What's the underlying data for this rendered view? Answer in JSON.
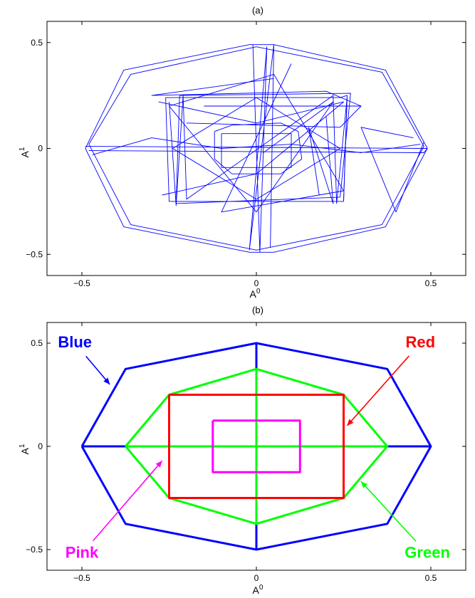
{
  "chart_data": [
    {
      "type": "line",
      "title": "(a)",
      "xlabel": "A",
      "xlabel_sup": "0",
      "ylabel": "A",
      "ylabel_sup": "1",
      "xlim": [
        -0.6,
        0.6
      ],
      "ylim": [
        -0.6,
        0.6
      ],
      "xticks": [
        -0.5,
        0,
        0.5
      ],
      "xtick_labels": [
        "−0.5",
        "0",
        "0.5"
      ],
      "yticks": [
        -0.5,
        0,
        0.5
      ],
      "ytick_labels": [
        "−0.5",
        "0",
        "0.5"
      ],
      "grid": false,
      "legend": "none",
      "series": [
        {
          "color": "#0000ff",
          "points": [
            [
              -0.49,
              0
            ],
            [
              -0.38,
              0.37
            ],
            [
              -0.02,
              0.49
            ],
            [
              0.05,
              0.49
            ],
            [
              0.37,
              0.37
            ],
            [
              0.49,
              0
            ],
            [
              0.37,
              -0.37
            ],
            [
              0.05,
              -0.49
            ],
            [
              -0.02,
              -0.49
            ],
            [
              -0.38,
              -0.37
            ],
            [
              -0.49,
              0
            ]
          ]
        },
        {
          "color": "#0000ff",
          "points": [
            [
              -0.48,
              0.02
            ],
            [
              -0.36,
              0.35
            ],
            [
              0.0,
              0.48
            ],
            [
              0.36,
              0.36
            ],
            [
              0.48,
              0.01
            ],
            [
              0.36,
              -0.36
            ],
            [
              0.0,
              -0.48
            ],
            [
              -0.36,
              -0.36
            ],
            [
              -0.48,
              0.02
            ]
          ]
        },
        {
          "color": "#0000ff",
          "points": [
            [
              -0.26,
              0.24
            ],
            [
              0.24,
              0.24
            ],
            [
              0.26,
              0.25
            ],
            [
              0.25,
              -0.25
            ],
            [
              -0.25,
              -0.25
            ],
            [
              -0.26,
              0.24
            ]
          ]
        },
        {
          "color": "#0000ff",
          "points": [
            [
              -0.22,
              0.25
            ],
            [
              0.27,
              0.26
            ],
            [
              0.24,
              -0.23
            ],
            [
              -0.23,
              -0.26
            ],
            [
              -0.22,
              0.25
            ]
          ]
        },
        {
          "color": "#0000ff",
          "points": [
            [
              -0.12,
              0.08
            ],
            [
              -0.07,
              0.11
            ],
            [
              0.07,
              0.12
            ],
            [
              0.12,
              0.08
            ],
            [
              0.13,
              -0.05
            ],
            [
              0.07,
              -0.12
            ],
            [
              -0.07,
              -0.12
            ],
            [
              -0.12,
              -0.05
            ],
            [
              -0.12,
              0.08
            ]
          ]
        },
        {
          "color": "#0000ff",
          "points": [
            [
              -0.1,
              0.07
            ],
            [
              0.1,
              0.07
            ],
            [
              0.1,
              -0.09
            ],
            [
              -0.1,
              -0.09
            ],
            [
              -0.1,
              0.07
            ]
          ]
        },
        {
          "color": "#0000ff",
          "points": [
            [
              -0.49,
              0.01
            ],
            [
              0.49,
              0.0
            ],
            [
              0.48,
              -0.02
            ],
            [
              -0.48,
              -0.01
            ]
          ]
        },
        {
          "color": "#0000ff",
          "points": [
            [
              -0.01,
              0.49
            ],
            [
              0.01,
              -0.49
            ],
            [
              0.03,
              0.48
            ],
            [
              -0.02,
              -0.48
            ],
            [
              0.05,
              0.49
            ],
            [
              0.04,
              -0.47
            ]
          ]
        },
        {
          "color": "#0000ff",
          "points": [
            [
              0.0,
              0.24
            ],
            [
              0.24,
              0.0
            ],
            [
              0.0,
              -0.24
            ],
            [
              -0.24,
              0.0
            ],
            [
              0.0,
              0.24
            ]
          ]
        },
        {
          "color": "#0000ff",
          "points": [
            [
              -0.25,
              0.22
            ],
            [
              -0.23,
              -0.27
            ],
            [
              -0.21,
              0.25
            ],
            [
              -0.2,
              -0.24
            ],
            [
              0.22,
              0.25
            ],
            [
              0.23,
              -0.26
            ],
            [
              0.26,
              0.24
            ],
            [
              0.25,
              -0.25
            ]
          ]
        },
        {
          "color": "#0000ff",
          "points": [
            [
              -0.15,
              0.2
            ],
            [
              0.3,
              0.2
            ],
            [
              0.24,
              0.1
            ],
            [
              -0.2,
              0.12
            ]
          ]
        },
        {
          "color": "#0000ff",
          "points": [
            [
              0.05,
              0.33
            ],
            [
              -0.3,
              0.25
            ],
            [
              0.2,
              0.27
            ],
            [
              0.3,
              0.2
            ]
          ]
        },
        {
          "color": "#0000ff",
          "points": [
            [
              0.02,
              -0.02
            ],
            [
              0.22,
              0.22
            ],
            [
              0.0,
              -0.3
            ],
            [
              -0.25,
              0.2
            ],
            [
              0.05,
              0.35
            ],
            [
              0.25,
              -0.2
            ],
            [
              -0.1,
              -0.3
            ],
            [
              0.1,
              0.4
            ]
          ]
        },
        {
          "color": "#0000ff",
          "points": [
            [
              0.48,
              0.03
            ],
            [
              0.4,
              -0.3
            ],
            [
              0.3,
              0.1
            ],
            [
              0.45,
              0.05
            ]
          ]
        },
        {
          "color": "#0000ff",
          "points": [
            [
              -0.47,
              -0.03
            ],
            [
              -0.3,
              0.05
            ],
            [
              -0.1,
              0.0
            ],
            [
              0.1,
              0.02
            ],
            [
              0.3,
              -0.02
            ],
            [
              0.47,
              0.02
            ]
          ]
        },
        {
          "color": "#0000ff",
          "points": [
            [
              0.18,
              -0.22
            ],
            [
              0.15,
              0.1
            ],
            [
              0.22,
              -0.26
            ],
            [
              0.2,
              0.15
            ]
          ]
        },
        {
          "color": "#0000ff",
          "points": [
            [
              -0.28,
              0.22
            ],
            [
              0.0,
              0.12
            ],
            [
              0.25,
              0.22
            ],
            [
              0.0,
              -0.12
            ],
            [
              -0.27,
              -0.22
            ]
          ]
        }
      ]
    },
    {
      "type": "line",
      "title": "(b)",
      "xlabel": "A",
      "xlabel_sup": "0",
      "ylabel": "A",
      "ylabel_sup": "1",
      "xlim": [
        -0.6,
        0.6
      ],
      "ylim": [
        -0.6,
        0.6
      ],
      "xticks": [
        -0.5,
        0,
        0.5
      ],
      "xtick_labels": [
        "−0.5",
        "0",
        "0.5"
      ],
      "yticks": [
        -0.5,
        0,
        0.5
      ],
      "ytick_labels": [
        "−0.5",
        "0",
        "0.5"
      ],
      "grid": false,
      "legend": "none",
      "series": [
        {
          "name": "Blue",
          "color": "#0000ff",
          "points": [
            [
              -0.5,
              0
            ],
            [
              -0.375,
              0.375
            ],
            [
              0,
              0.5
            ],
            [
              0.375,
              0.375
            ],
            [
              0.5,
              0
            ],
            [
              0.375,
              -0.375
            ],
            [
              0,
              -0.5
            ],
            [
              -0.375,
              -0.375
            ],
            [
              -0.5,
              0
            ]
          ]
        },
        {
          "name": "Blue",
          "color": "#0000ff",
          "points": [
            [
              -0.5,
              0
            ],
            [
              0.5,
              0
            ]
          ]
        },
        {
          "name": "Blue",
          "color": "#0000ff",
          "points": [
            [
              0,
              0.5
            ],
            [
              0,
              -0.5
            ]
          ]
        },
        {
          "name": "Green",
          "color": "#00ff00",
          "points": [
            [
              -0.375,
              0
            ],
            [
              -0.25,
              0.25
            ],
            [
              0,
              0.375
            ],
            [
              0.25,
              0.25
            ],
            [
              0.375,
              0
            ],
            [
              0.25,
              -0.25
            ],
            [
              0,
              -0.375
            ],
            [
              -0.25,
              -0.25
            ],
            [
              -0.375,
              0
            ]
          ]
        },
        {
          "name": "Green",
          "color": "#00ff00",
          "points": [
            [
              -0.375,
              0
            ],
            [
              0.375,
              0
            ]
          ]
        },
        {
          "name": "Green",
          "color": "#00ff00",
          "points": [
            [
              0,
              0.375
            ],
            [
              0,
              -0.375
            ]
          ]
        },
        {
          "name": "Red",
          "color": "#ff0000",
          "points": [
            [
              -0.25,
              0.25
            ],
            [
              0.25,
              0.25
            ],
            [
              0.25,
              -0.25
            ],
            [
              -0.25,
              -0.25
            ],
            [
              -0.25,
              0.25
            ]
          ]
        },
        {
          "name": "Pink",
          "color": "#ff00ff",
          "points": [
            [
              -0.125,
              0.125
            ],
            [
              0.125,
              0.125
            ],
            [
              0.125,
              -0.125
            ],
            [
              -0.125,
              -0.125
            ],
            [
              -0.125,
              0.125
            ]
          ]
        }
      ],
      "annotations": [
        {
          "text": "Blue",
          "color": "#0000ff",
          "at": [
            -0.52,
            0.5
          ],
          "arrow_to": [
            -0.42,
            0.3
          ]
        },
        {
          "text": "Red",
          "color": "#ff0000",
          "at": [
            0.47,
            0.5
          ],
          "arrow_to": [
            0.26,
            0.1
          ]
        },
        {
          "text": "Pink",
          "color": "#ff00ff",
          "at": [
            -0.5,
            -0.52
          ],
          "arrow_to": [
            -0.27,
            -0.07
          ]
        },
        {
          "text": "Green",
          "color": "#00ff00",
          "at": [
            0.49,
            -0.52
          ],
          "arrow_to": [
            0.3,
            -0.17
          ]
        }
      ]
    }
  ]
}
